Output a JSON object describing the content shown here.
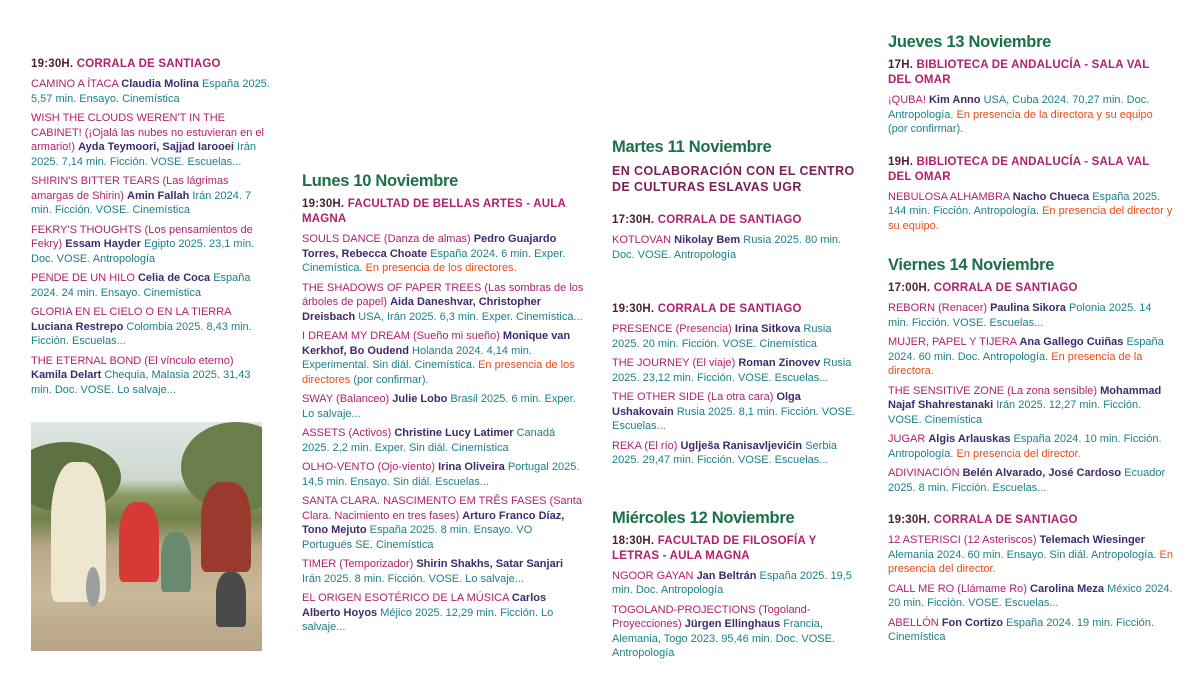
{
  "columns": [
    {
      "blocks": [
        {
          "kind": "session",
          "time": "19:30H.",
          "venue": "CORRALA DE SANTIAGO",
          "films": [
            {
              "title": "CAMINO A ÍTACA",
              "director": "Claudia Molina",
              "info": "España 2025. 5,57 min. Ensayo. Cinemística"
            },
            {
              "title": "WISH THE CLOUDS WEREN'T IN THE CABINET! (¡Ojalá las nubes no estuvieran en el armario!)",
              "director": "Ayda Teymoori, Sajjad Iarooei",
              "info": "Irán 2025. 7,14 min. Ficción. VOSE. Escuelas..."
            },
            {
              "title": "SHIRIN'S BITTER TEARS (Las lágrimas amargas de Shirin)",
              "director": "Amin Fallah",
              "info": "Irán 2024. 7 min. Ficción. VOSE. Cinemística"
            },
            {
              "title": "FEKRY'S THOUGHTS (Los pensamientos de Fekry)",
              "director": "Essam Hayder",
              "info": "Egipto 2025. 23,1 min. Doc. VOSE. Antropología"
            },
            {
              "title": "PENDE DE UN HILO",
              "director": "Celia de Coca",
              "info": "España 2024. 24 min. Ensayo. Cinemística"
            },
            {
              "title": "GLORIA EN EL CIELO O EN LA TIERRA",
              "director": "Luciana Restrepo",
              "info": "Colombia 2025. 8,43 min. Ficción. Escuelas..."
            },
            {
              "title": "THE ETERNAL BOND (El vínculo eterno)",
              "director": "Kamila Delart",
              "info": "Chequia, Malasia 2025. 31,43 min. Doc. VOSE. Lo salvaje..."
            }
          ]
        }
      ]
    },
    {
      "blocks": [
        {
          "kind": "day",
          "label": "Lunes 10 Noviembre"
        },
        {
          "kind": "session",
          "time": "19:30H.",
          "venue": "FACULTAD DE BELLAS ARTES - AULA MAGNA",
          "films": [
            {
              "title": "SOULS DANCE (Danza de almas)",
              "director": "Pedro Guajardo Torres, Rebecca Choate",
              "info": "España 2024. 6 min. Exper. Cinemística.",
              "presence": "En presencia de los directores."
            },
            {
              "title": "THE SHADOWS OF PAPER TREES (Las sombras de los árboles de papel)",
              "director": "Aida Daneshvar, Christopher Dreisbach",
              "info": "USA, Irán 2025. 6,3 min. Exper. Cinemística..."
            },
            {
              "title": "I DREAM MY DREAM (Sueño mi sueño)",
              "director": "Monique van Kerkhof, Bo Oudend",
              "info": "Holanda 2024. 4,14 min. Experimental. Sin diál. Cinemística.",
              "presence": "En presencia de los directores",
              "note": "(por confirmar)."
            },
            {
              "title": "SWAY (Balanceo)",
              "director": "Julie Lobo",
              "info": "Brasil 2025. 6 min. Exper. Lo salvaje..."
            },
            {
              "title": "ASSETS (Activos)",
              "director": "Christine Lucy Latimer",
              "info": "Canadá 2025. 2,2 min. Exper. Sin diál. Cinemística"
            },
            {
              "title": "OLHO-VENTO (Ojo-viento)",
              "director": "Irina Oliveira",
              "info": "Portugal 2025. 14,5 min. Ensayo. Sin diál. Escuelas..."
            },
            {
              "title": "SANTA CLARA. NASCIMENTO EM TRÊS FASES (Santa Clara. Nacimiento en tres fases)",
              "director": "Arturo Franco Díaz, Tono Mejuto",
              "info": "España 2025. 8 min. Ensayo. VO Portugués SE. Cinemística"
            },
            {
              "title": "TIMER (Temporizador)",
              "director": "Shirin Shakhs, Satar Sanjari",
              "info": "Irán 2025. 8 min. Ficción. VOSE. Lo salvaje..."
            },
            {
              "title": "EL ORIGEN ESOTÉRICO DE LA MÚSICA",
              "director": "Carlos Alberto Hoyos",
              "info": "Méjico 2025. 12,29 min. Ficción. Lo salvaje..."
            }
          ]
        }
      ]
    },
    {
      "blocks": [
        {
          "kind": "day",
          "label": "Martes 11 Noviembre"
        },
        {
          "kind": "collab",
          "label": "EN COLABORACIÓN CON EL CENTRO DE CULTURAS ESLAVAS UGR"
        },
        {
          "kind": "session",
          "time": "17:30H.",
          "venue": "CORRALA DE SANTIAGO",
          "films": [
            {
              "title": "KOTLOVAN",
              "director": "Nikolay Bem",
              "info": "Rusia 2025. 80 min. Doc. VOSE. Antropología"
            }
          ]
        },
        {
          "kind": "session",
          "time": "19:30H.",
          "venue": "CORRALA DE SANTIAGO",
          "films": [
            {
              "title": "PRESENCE (Presencia)",
              "director": "Irina Sitkova",
              "info": "Rusia 2025. 20 min. Ficción. VOSE. Cinemística"
            },
            {
              "title": "THE JOURNEY (El viaje)",
              "director": "Roman Zinovev",
              "info": "Rusia 2025. 23,12 min. Ficción. VOSE. Escuelas..."
            },
            {
              "title": "THE OTHER SIDE (La otra cara)",
              "director": "Olga Ushakovain",
              "info": "Rusia 2025. 8,1 min. Ficción. VOSE. Escuelas..."
            },
            {
              "title": "REKA (El río)",
              "director": "Uglješa Ranisavljevićin",
              "info": "Serbia 2025. 29,47 min. Ficción. VOSE. Escuelas..."
            }
          ]
        },
        {
          "kind": "day",
          "label": "Miércoles 12 Noviembre"
        },
        {
          "kind": "session",
          "time": "18:30H.",
          "venue": "FACULTAD DE FILOSOFÍA Y LETRAS - AULA MAGNA",
          "films": [
            {
              "title": "NGOOR GAYAN",
              "director": "Jan Beltrán",
              "info": "España 2025. 19,5 min. Doc. Antropología"
            },
            {
              "title": "TOGOLAND-PROJECTIONS (Togoland-Proyecciones)",
              "director": "Jürgen Ellinghaus",
              "info": "Francia, Alemania, Togo 2023. 95,46 min. Doc. VOSE. Antropología"
            }
          ]
        }
      ]
    },
    {
      "blocks": [
        {
          "kind": "day",
          "label": "Jueves 13 Noviembre"
        },
        {
          "kind": "session",
          "time": "17H.",
          "venue": "BIBLIOTECA DE ANDALUCÍA - SALA VAL DEL OMAR",
          "films": [
            {
              "title": "¡QUBA!",
              "director": "Kim Anno",
              "info": "USA, Cuba 2024. 70,27 min. Doc. Antropología.",
              "presence": "En presencia de la directora y su equipo",
              "note": "(por confirmar)."
            }
          ]
        },
        {
          "kind": "session",
          "time": "19H.",
          "venue": "BIBLIOTECA DE ANDALUCÍA - SALA VAL DEL OMAR",
          "films": [
            {
              "title": "NEBULOSA ALHAMBRA",
              "director": "Nacho Chueca",
              "info": "España 2025. 144 min. Ficción. Antropología.",
              "presence": "En presencia del director y su equipo."
            }
          ]
        },
        {
          "kind": "day",
          "label": "Viernes 14 Noviembre"
        },
        {
          "kind": "session",
          "time": "17:00H.",
          "venue": "CORRALA DE SANTIAGO",
          "films": [
            {
              "title": "REBORN (Renacer)",
              "director": "Paulina Sikora",
              "info": "Polonia 2025. 14 min. Ficción. VOSE. Escuelas..."
            },
            {
              "title": "MUJER, PAPEL Y TIJERA",
              "director": "Ana Gallego Cuiñas",
              "info": "España 2024. 60 min. Doc. Antropología.",
              "presence": "En presencia de la directora."
            },
            {
              "title": "THE SENSITIVE ZONE (La zona sensible)",
              "director": "Mohammad Najaf Shahrestanaki",
              "info": "Irán 2025. 12,27 min. Ficción. VOSE. Cinemística"
            },
            {
              "title": "JUGAR",
              "director": "Algis Arlauskas",
              "info": "España 2024. 10 min. Ficción. Antropología.",
              "presence": "En presencia del director."
            },
            {
              "title": "ADIVINACIÓN",
              "director": "Belén Alvarado, José Cardoso",
              "info": "Ecuador 2025. 8 min. Ficción. Escuelas..."
            }
          ]
        },
        {
          "kind": "session",
          "time": "19:30H.",
          "venue": "CORRALA DE SANTIAGO",
          "films": [
            {
              "title": "12 ASTERISCI (12 Asteriscos)",
              "director": "Telemach Wiesinger",
              "info": "Alemania 2024. 60 min. Ensayo. Sin diál. Antropología.",
              "presence": "En presencia del director."
            },
            {
              "title": "CALL ME RO (Llámame Ro)",
              "director": "Carolina Meza",
              "info": "México 2024. 20 min. Ficción. VOSE. Escuelas..."
            },
            {
              "title": "ABELLÓN",
              "director": "Fon Cortizo",
              "info": "España 2024. 19 min. Ficción. Cinemística"
            }
          ]
        }
      ]
    }
  ],
  "colors": {
    "day": "#1b7048",
    "title": "#b0206e",
    "director": "#3f2a6e",
    "info": "#1c8088",
    "presence": "#ea4a1a"
  }
}
